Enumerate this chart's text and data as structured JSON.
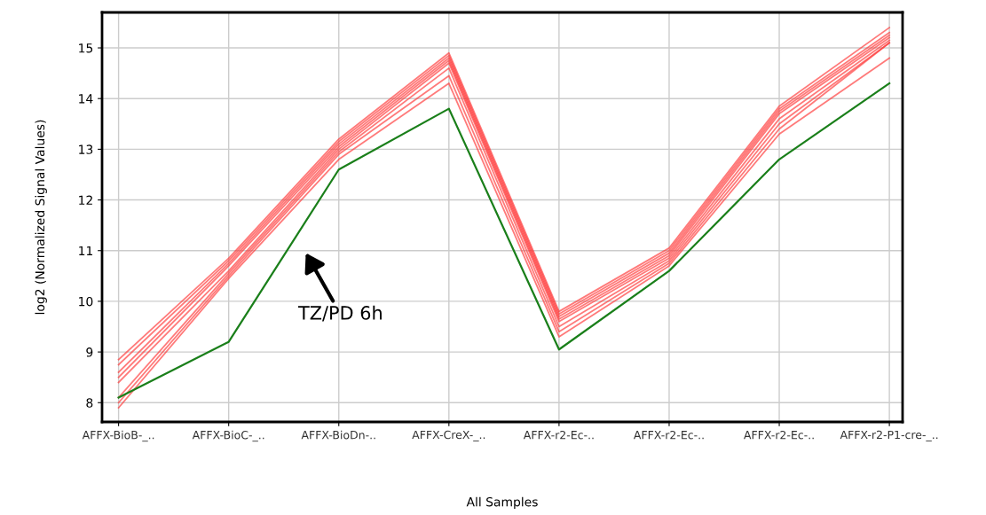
{
  "chart_data": {
    "type": "line",
    "xlabel": "All Samples",
    "ylabel": "log2 (Normalized Signal Values)",
    "categories": [
      "AFFX-BioB-_..",
      "AFFX-BioC-_..",
      "AFFX-BioDn-..",
      "AFFX-CreX-_..",
      "AFFX-r2-Ec-..",
      "AFFX-r2-Ec-..",
      "AFFX-r2-Ec-..",
      "AFFX-r2-P1-cre-_.."
    ],
    "series": [
      {
        "color": "#ff3333",
        "values": [
          8.85,
          10.85,
          13.2,
          14.9,
          9.8,
          11.05,
          13.85,
          15.4
        ]
      },
      {
        "color": "#ff3333",
        "values": [
          8.75,
          10.8,
          13.15,
          14.85,
          9.75,
          11.0,
          13.8,
          15.3
        ]
      },
      {
        "color": "#ff3333",
        "values": [
          8.6,
          10.75,
          13.1,
          14.8,
          9.7,
          10.95,
          13.75,
          15.25
        ]
      },
      {
        "color": "#ff3333",
        "values": [
          8.5,
          10.7,
          13.05,
          14.75,
          9.65,
          10.9,
          13.7,
          15.2
        ]
      },
      {
        "color": "#ff3333",
        "values": [
          8.4,
          10.6,
          13.0,
          14.7,
          9.6,
          10.85,
          13.6,
          15.15
        ]
      },
      {
        "color": "#ff3333",
        "values": [
          8.1,
          10.55,
          12.95,
          14.6,
          9.5,
          10.8,
          13.5,
          15.1
        ]
      },
      {
        "color": "#ff3333",
        "values": [
          8.0,
          10.5,
          12.9,
          14.45,
          9.4,
          10.75,
          13.4,
          15.1
        ]
      },
      {
        "color": "#ff3333",
        "values": [
          7.9,
          10.45,
          12.8,
          14.3,
          9.3,
          10.7,
          13.3,
          14.8
        ]
      },
      {
        "color": "#1a7f1a",
        "values": [
          8.1,
          9.2,
          12.6,
          13.8,
          9.05,
          10.6,
          12.8,
          14.3
        ]
      }
    ],
    "annotations": [
      "TZ/PD 6h"
    ],
    "ylim": [
      7.62,
      15.7
    ],
    "yticks": [
      8,
      9,
      10,
      11,
      12,
      13,
      14,
      15
    ],
    "grid": true,
    "legend": false,
    "marker": "none",
    "line_style": "solid"
  }
}
